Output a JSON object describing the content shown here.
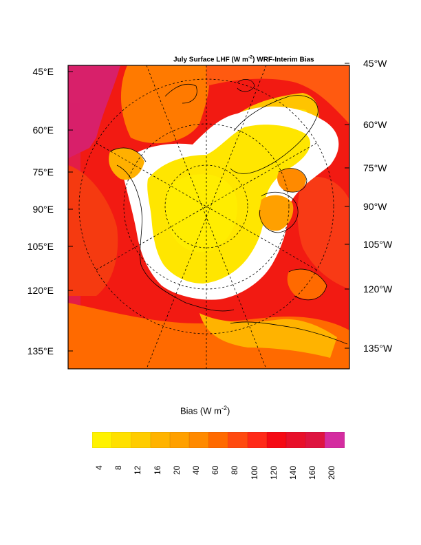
{
  "title": {
    "prefix": "July Surface LHF (W m",
    "exp": "-2",
    "suffix": ") WRF-Interim Bias"
  },
  "left_labels": [
    "45°E",
    "60°E",
    "75°E",
    "90°E",
    "105°E",
    "120°E",
    "135°E"
  ],
  "right_labels": [
    "45°W",
    "60°W",
    "75°W",
    "90°W",
    "105°W",
    "120°W",
    "135°W"
  ],
  "colorbar": {
    "title_prefix": "Bias (W m",
    "title_exp": "-2",
    "title_suffix": ")",
    "ticks": [
      "4",
      "8",
      "12",
      "16",
      "20",
      "40",
      "60",
      "80",
      "100",
      "120",
      "140",
      "160",
      "200"
    ],
    "colors": [
      "#FFF200",
      "#FFE000",
      "#FFCC00",
      "#FFB300",
      "#FFA000",
      "#FF8A00",
      "#FF6A00",
      "#FF4A10",
      "#FF2A18",
      "#F50A14",
      "#E8102A",
      "#DE1440",
      "#D42CA0"
    ]
  },
  "map": {
    "background_color": "#F5150F",
    "ice_color": "#FFFFFF",
    "ocean_color": "#FFE600"
  }
}
